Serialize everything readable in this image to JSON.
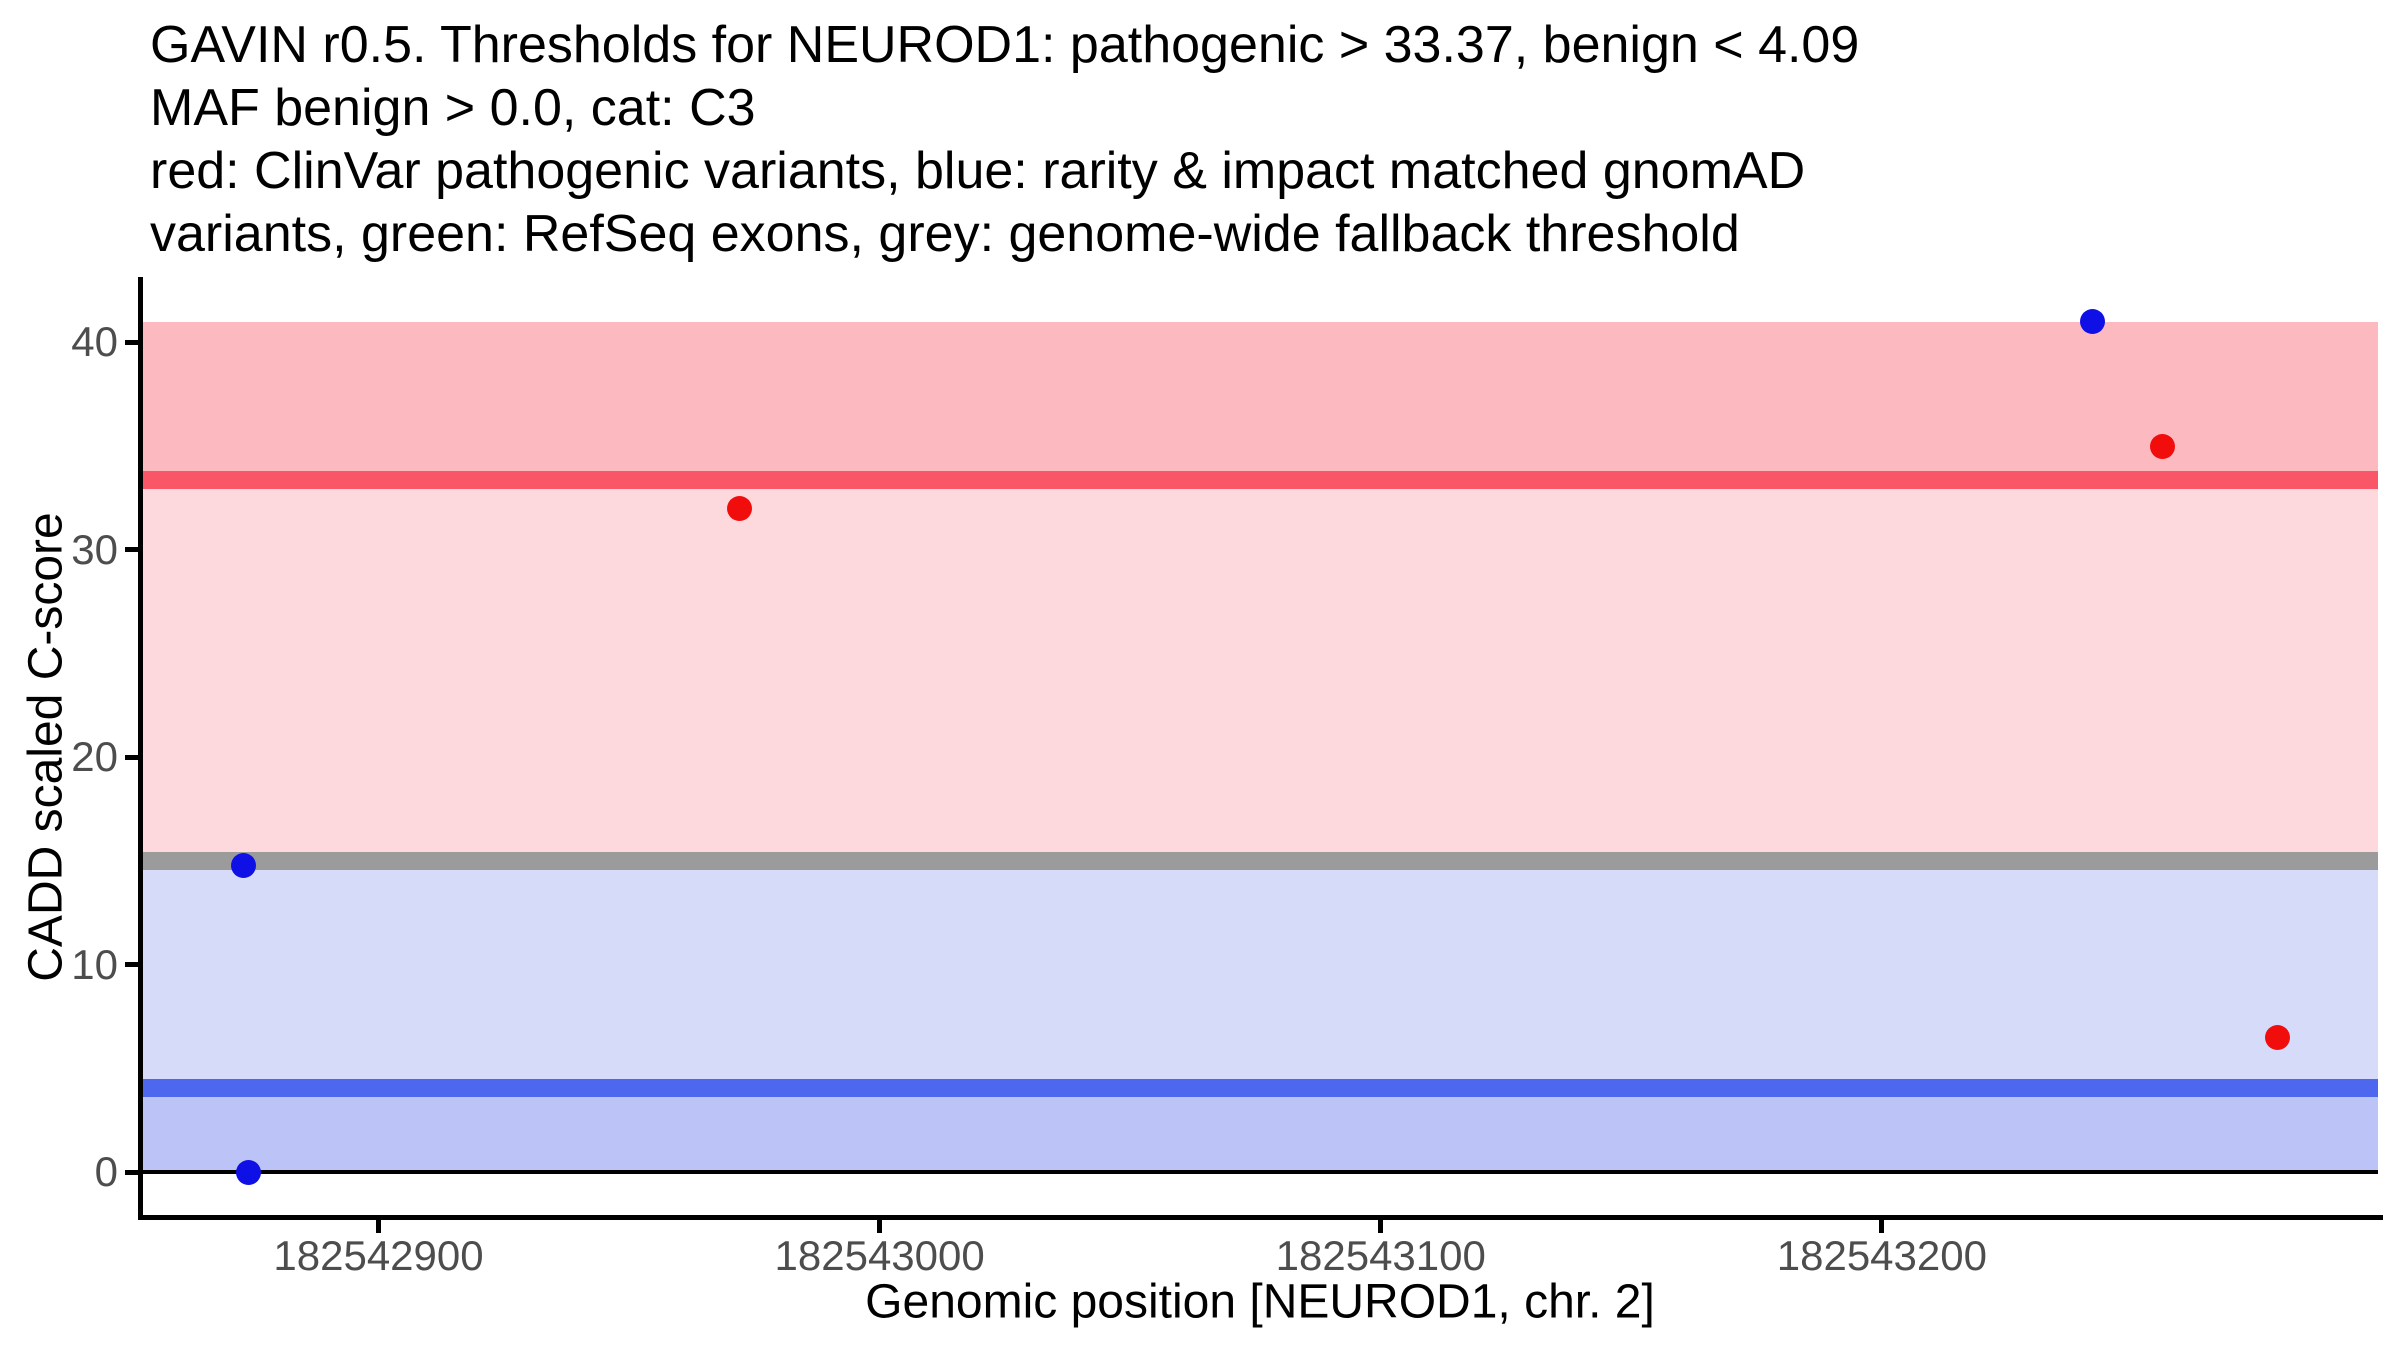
{
  "title_lines": [
    "GAVIN r0.5. Thresholds for NEUROD1: pathogenic > 33.37, benign < 4.09",
    "MAF benign > 0.0, cat: C3",
    "red: ClinVar pathogenic variants, blue: rarity & impact matched gnomAD",
    "variants, green: RefSeq exons, grey: genome-wide fallback threshold"
  ],
  "axes": {
    "x": {
      "label": "Genomic position [NEUROD1, chr. 2]",
      "ticks": [
        182542900,
        182543000,
        182543100,
        182543200
      ],
      "range": [
        182542853,
        182543299
      ]
    },
    "y": {
      "label": "CADD scaled C-score",
      "ticks": [
        0,
        10,
        20,
        30,
        40
      ],
      "range": [
        -2.05,
        43.05
      ]
    }
  },
  "chart_data": {
    "type": "scatter",
    "title": "GAVIN r0.5. Thresholds for NEUROD1: pathogenic > 33.37, benign < 4.09 MAF benign > 0.0, cat: C3",
    "xlabel": "Genomic position [NEUROD1, chr. 2]",
    "ylabel": "CADD scaled C-score",
    "xlim": [
      182542853,
      182543299
    ],
    "ylim": [
      -2.05,
      43.05
    ],
    "grid": false,
    "legend": false,
    "thresholds": {
      "pathogenic": 33.37,
      "benign": 4.09,
      "maf_benign": 0.0,
      "category": "C3",
      "genome_wide_fallback": 15
    },
    "series": [
      {
        "name": "ClinVar pathogenic variants",
        "color": "#f20d0d",
        "points": [
          {
            "x": 182542972,
            "y": 32
          },
          {
            "x": 182543256,
            "y": 35
          },
          {
            "x": 182543279,
            "y": 6.5
          }
        ]
      },
      {
        "name": "rarity & impact matched gnomAD variants",
        "color": "#0f10e6",
        "points": [
          {
            "x": 182542873,
            "y": 14.8
          },
          {
            "x": 182542874,
            "y": 0
          },
          {
            "x": 182543242,
            "y": 41
          }
        ]
      }
    ],
    "bands": [
      {
        "name": "pathogenic-region",
        "from": 33.37,
        "to": 41,
        "color": "#fdb9c0"
      },
      {
        "name": "above-fallback-region",
        "from": 15,
        "to": 33.37,
        "color": "#fdd9dd"
      },
      {
        "name": "below-fallback-region",
        "from": 4.09,
        "to": 15,
        "color": "#d6dbfa"
      },
      {
        "name": "benign-region",
        "from": 0,
        "to": 4.09,
        "color": "#bcc4f7"
      }
    ],
    "hlines": [
      {
        "name": "pathogenic-threshold-line",
        "y": 33.37,
        "color": "#f95767",
        "thickness": 18
      },
      {
        "name": "genome-wide-fallback-threshold-line",
        "y": 15,
        "color": "#9b9b9b",
        "thickness": 18
      },
      {
        "name": "benign-threshold-line",
        "y": 4.09,
        "color": "#4e67ef",
        "thickness": 18
      },
      {
        "name": "zero-baseline",
        "y": 0,
        "color": "#000000",
        "thickness": 4
      }
    ]
  }
}
